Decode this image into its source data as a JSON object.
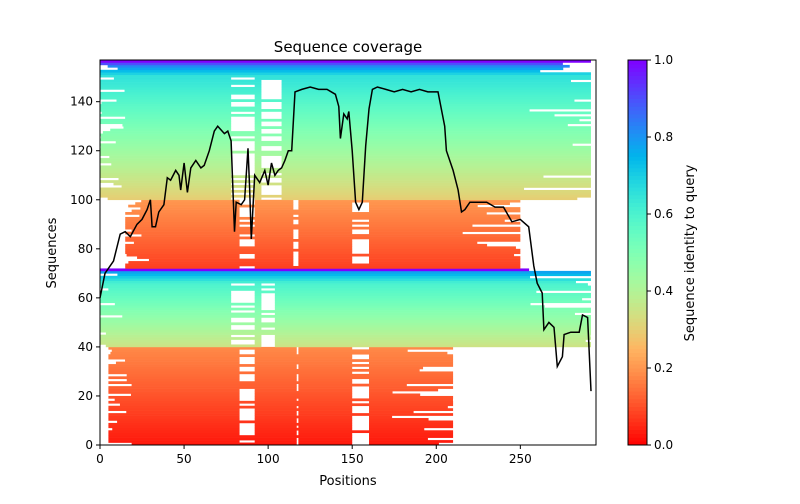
{
  "chart_data": {
    "type": "heatmap",
    "title": "Sequence coverage",
    "xlabel": "Positions",
    "ylabel": "Sequences",
    "xlim": [
      0,
      295
    ],
    "ylim": [
      0,
      157
    ],
    "xticks": [
      "0",
      "50",
      "100",
      "150",
      "200",
      "250"
    ],
    "xtick_values": [
      0,
      50,
      100,
      150,
      200,
      250
    ],
    "yticks": [
      "0",
      "20",
      "40",
      "60",
      "80",
      "100",
      "120",
      "140"
    ],
    "ytick_values": [
      0,
      20,
      40,
      60,
      80,
      100,
      120,
      140
    ],
    "grid": false,
    "colorbar": {
      "label": "Sequence identity to query",
      "colormap": "rainbow_r",
      "range": [
        0,
        1
      ],
      "ticks": [
        "0.0",
        "0.2",
        "0.4",
        "0.6",
        "0.8",
        "1.0"
      ],
      "tick_values": [
        0,
        0.2,
        0.4,
        0.6,
        0.8,
        1.0
      ]
    },
    "sequence_bands": [
      {
        "rows": [
          0,
          40
        ],
        "identity": [
          0.03,
          0.18
        ],
        "span": [
          5,
          210
        ],
        "gaps": [
          [
            83,
            92
          ],
          [
            117,
            118
          ],
          [
            150,
            160
          ]
        ]
      },
      {
        "rows": [
          40,
          66
        ],
        "identity": [
          0.35,
          0.6
        ],
        "span": [
          0,
          292
        ],
        "gaps": [
          [
            78,
            92
          ],
          [
            96,
            104
          ]
        ]
      },
      {
        "rows": [
          66,
          71
        ],
        "identity": [
          0.62,
          0.78
        ],
        "span": [
          0,
          292
        ],
        "gaps": []
      },
      {
        "rows": [
          71,
          72
        ],
        "identity": [
          1.0,
          1.0
        ],
        "span": [
          0,
          292
        ],
        "gaps": []
      },
      {
        "rows": [
          72,
          100
        ],
        "identity": [
          0.08,
          0.2
        ],
        "span": [
          15,
          250
        ],
        "gaps": [
          [
            83,
            92
          ],
          [
            115,
            118
          ],
          [
            150,
            160
          ]
        ]
      },
      {
        "rows": [
          100,
          150
        ],
        "identity": [
          0.3,
          0.65
        ],
        "span": [
          0,
          292
        ],
        "gaps": [
          [
            78,
            92
          ],
          [
            96,
            108
          ]
        ]
      },
      {
        "rows": [
          150,
          155
        ],
        "identity": [
          0.65,
          0.82
        ],
        "span": [
          0,
          292
        ],
        "gaps": []
      },
      {
        "rows": [
          155,
          157
        ],
        "identity": [
          0.9,
          1.0
        ],
        "span": [
          0,
          292
        ],
        "gaps": []
      }
    ],
    "coverage_line": {
      "color": "#000000",
      "x": [
        0,
        3,
        8,
        12,
        15,
        18,
        22,
        25,
        28,
        30,
        31,
        33,
        35,
        38,
        40,
        42,
        45,
        47,
        48,
        50,
        52,
        54,
        57,
        60,
        62,
        65,
        68,
        70,
        74,
        76,
        78,
        80,
        81,
        84,
        86,
        88,
        89,
        90,
        92,
        95,
        98,
        100,
        102,
        104,
        106,
        108,
        110,
        112,
        114,
        116,
        120,
        125,
        130,
        135,
        140,
        142,
        143,
        145,
        147,
        148,
        150,
        152,
        154,
        156,
        158,
        160,
        162,
        165,
        170,
        175,
        180,
        185,
        190,
        195,
        201,
        205,
        206,
        210,
        213,
        215,
        217,
        220,
        230,
        235,
        240,
        245,
        250,
        255,
        258,
        260,
        263,
        264,
        267,
        270,
        272,
        275,
        276,
        280,
        285,
        287,
        290,
        292
      ],
      "y": [
        60,
        70,
        75,
        86,
        87,
        85,
        90,
        92,
        96,
        100,
        89,
        89,
        95,
        98,
        109,
        108,
        112,
        110,
        104,
        115,
        103,
        113,
        116,
        113,
        114,
        120,
        128,
        130,
        127,
        128,
        124,
        87,
        99,
        98,
        100,
        121,
        105,
        84,
        110,
        107,
        112,
        106,
        115,
        110,
        112,
        113,
        116,
        120,
        120,
        144,
        145,
        146,
        145,
        145,
        143,
        138,
        125,
        135,
        133,
        136,
        120,
        99,
        96,
        99,
        122,
        137,
        145,
        146,
        145,
        144,
        145,
        144,
        145,
        144,
        144,
        130,
        120,
        112,
        104,
        95,
        96,
        99,
        99,
        97,
        97,
        91,
        92,
        89,
        73,
        66,
        62,
        47,
        50,
        48,
        32,
        36,
        45,
        46,
        46,
        53,
        52,
        22
      ]
    }
  }
}
